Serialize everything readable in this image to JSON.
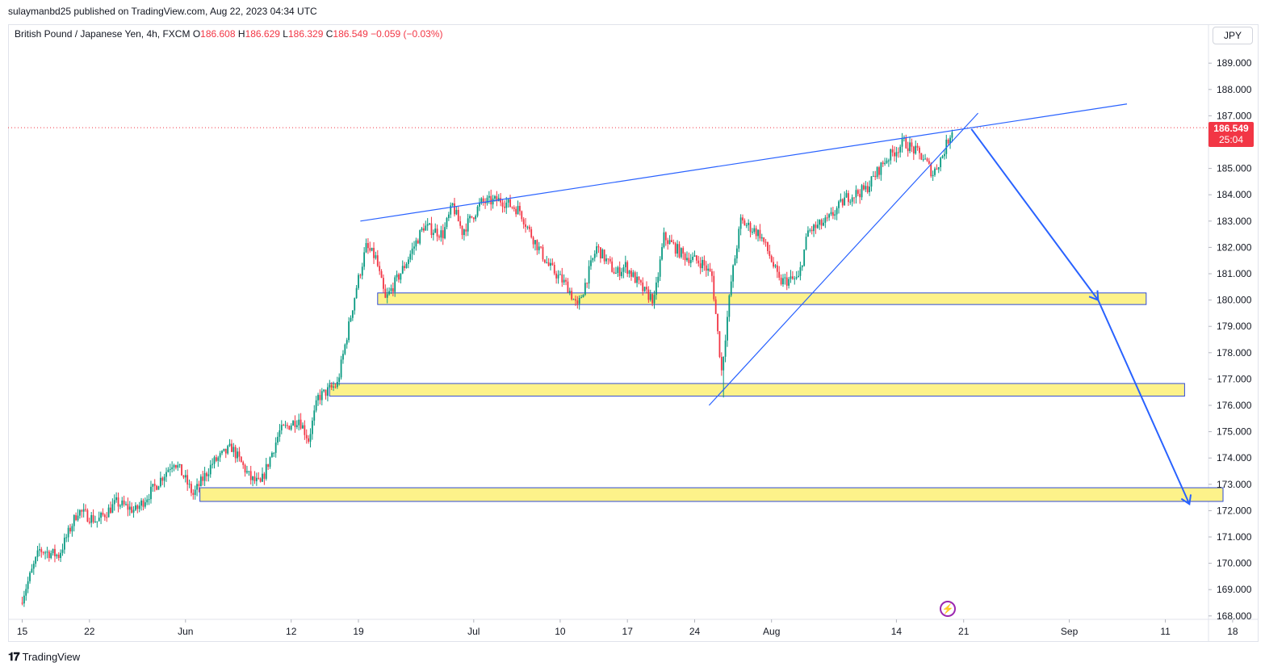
{
  "header": {
    "published": "sulaymanbd25 published on TradingView.com, Aug 22, 2023 04:34 UTC"
  },
  "legend": {
    "symbol": "British Pound / Japanese Yen, 4h, FXCM",
    "o_label": "O",
    "o_value": "186.608",
    "h_label": "H",
    "h_value": "186.629",
    "l_label": "L",
    "l_value": "186.329",
    "c_label": "C",
    "c_value": "186.549",
    "change": "−0.059 (−0.03%)"
  },
  "currency_button": "JPY",
  "last_price": {
    "price": "186.549",
    "countdown": "25:04"
  },
  "footer": {
    "brand": "TradingView"
  },
  "colors": {
    "up": "#089981",
    "down": "#f23645",
    "zone_fill": "#fdf28a",
    "zone_stroke": "#2f4bd6",
    "drawing": "#2962ff",
    "last_price_line": "#f23645"
  },
  "chart_data": {
    "type": "candlestick",
    "symbol": "GBPJPY",
    "timeframe": "4h",
    "ylim": [
      167.9,
      189.5
    ],
    "y_ticks": [
      "189.000",
      "188.000",
      "187.000",
      "186.000",
      "185.000",
      "184.000",
      "183.000",
      "182.000",
      "181.000",
      "180.000",
      "179.000",
      "178.000",
      "177.000",
      "176.000",
      "175.000",
      "174.000",
      "173.000",
      "172.000",
      "171.000",
      "170.000",
      "169.000",
      "168.000"
    ],
    "x_ticks": [
      {
        "label": "15",
        "day": 0
      },
      {
        "label": "22",
        "day": 7
      },
      {
        "label": "Jun",
        "day": 17
      },
      {
        "label": "12",
        "day": 28
      },
      {
        "label": "19",
        "day": 35
      },
      {
        "label": "Jul",
        "day": 47
      },
      {
        "label": "10",
        "day": 56
      },
      {
        "label": "17",
        "day": 63
      },
      {
        "label": "24",
        "day": 70
      },
      {
        "label": "Aug",
        "day": 78
      },
      {
        "label": "14",
        "day": 91
      },
      {
        "label": "21",
        "day": 98
      },
      {
        "label": "Sep",
        "day": 109
      },
      {
        "label": "11",
        "day": 119
      },
      {
        "label": "18",
        "day": 126
      }
    ],
    "price_path": [
      [
        0,
        168.5
      ],
      [
        2,
        170.5
      ],
      [
        4,
        170.3
      ],
      [
        6,
        172.0
      ],
      [
        8,
        171.6
      ],
      [
        10,
        172.3
      ],
      [
        12,
        172.0
      ],
      [
        14,
        172.9
      ],
      [
        16,
        173.9
      ],
      [
        17,
        173.3
      ],
      [
        18,
        172.6
      ],
      [
        20,
        173.8
      ],
      [
        22,
        174.4
      ],
      [
        24,
        173.2
      ],
      [
        25,
        173.0
      ],
      [
        27,
        175.0
      ],
      [
        29,
        175.5
      ],
      [
        30,
        174.7
      ],
      [
        31,
        176.3
      ],
      [
        33,
        176.8
      ],
      [
        35,
        180.5
      ],
      [
        36,
        182.0
      ],
      [
        37,
        181.6
      ],
      [
        38,
        180.0
      ],
      [
        40,
        181.3
      ],
      [
        42,
        182.8
      ],
      [
        44,
        182.5
      ],
      [
        45,
        183.6
      ],
      [
        46,
        182.6
      ],
      [
        48,
        183.7
      ],
      [
        50,
        183.8
      ],
      [
        52,
        183.4
      ],
      [
        53,
        182.6
      ],
      [
        55,
        181.3
      ],
      [
        57,
        180.5
      ],
      [
        58,
        179.7
      ],
      [
        60,
        182.0
      ],
      [
        62,
        181.0
      ],
      [
        63,
        181.3
      ],
      [
        65,
        180.3
      ],
      [
        66,
        180.0
      ],
      [
        67,
        182.4
      ],
      [
        69,
        181.7
      ],
      [
        71,
        181.4
      ],
      [
        72,
        180.9
      ],
      [
        73,
        177.3
      ],
      [
        74,
        180.7
      ],
      [
        75,
        183.0
      ],
      [
        77,
        182.5
      ],
      [
        78,
        181.7
      ],
      [
        79,
        180.7
      ],
      [
        81,
        180.8
      ],
      [
        82,
        182.6
      ],
      [
        84,
        183.0
      ],
      [
        86,
        183.9
      ],
      [
        88,
        184.2
      ],
      [
        90,
        185.3
      ],
      [
        92,
        186.0
      ],
      [
        94,
        185.4
      ],
      [
        95,
        184.8
      ],
      [
        96,
        185.5
      ],
      [
        97,
        186.5
      ]
    ],
    "last_price": 186.549,
    "support_zones": [
      {
        "day_from": 37.0,
        "day_to": 117.0,
        "price_from": 179.83,
        "price_to": 180.27
      },
      {
        "day_from": 32.0,
        "day_to": 121.0,
        "price_from": 176.35,
        "price_to": 176.83
      },
      {
        "day_from": 18.5,
        "day_to": 125.0,
        "price_from": 172.35,
        "price_to": 172.87
      }
    ],
    "trendlines": [
      {
        "from": [
          35.2,
          183.0
        ],
        "to": [
          115.0,
          187.45
        ]
      },
      {
        "from": [
          71.5,
          176.0
        ],
        "to": [
          99.5,
          187.1
        ]
      }
    ],
    "projection_path": [
      [
        98.8,
        186.5
      ],
      [
        112.0,
        180.0
      ],
      [
        121.5,
        172.25
      ]
    ]
  }
}
